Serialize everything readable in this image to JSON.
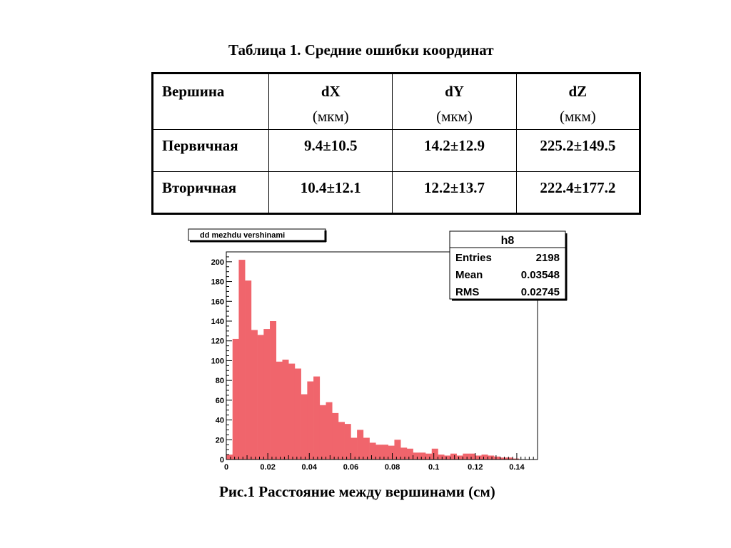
{
  "table": {
    "caption": "Таблица 1. Средние ошибки координат",
    "header": {
      "vertex": "Вершина",
      "columns": [
        {
          "name": "dX",
          "unit": "(мкм)"
        },
        {
          "name": "dY",
          "unit": "(мкм)"
        },
        {
          "name": "dZ",
          "unit": "(мкм)"
        }
      ]
    },
    "rows": [
      {
        "label": "Первичная",
        "values": [
          "9.4±10.5",
          "14.2±12.9",
          "225.2±149.5"
        ]
      },
      {
        "label": "Вторичная",
        "values": [
          "10.4±12.1",
          "12.2±13.7",
          "222.4±177.2"
        ]
      }
    ]
  },
  "stats_box": {
    "name": "h8",
    "rows": [
      {
        "label": "Entries",
        "value": "2198"
      },
      {
        "label": "Mean",
        "value": "0.03548"
      },
      {
        "label": "RMS",
        "value": "0.02745"
      }
    ]
  },
  "figure_caption": "Рис.1 Расстояние между вершинами (см)",
  "chart_data": {
    "type": "bar",
    "title": "dd mezhdu vershinami",
    "xlabel": "",
    "ylabel": "",
    "xlim": [
      0,
      0.15
    ],
    "ylim": [
      0,
      210
    ],
    "x_ticks": [
      "0",
      "0.02",
      "0.04",
      "0.06",
      "0.08",
      "0.1",
      "0.12",
      "0.14"
    ],
    "x_tick_values": [
      0,
      0.02,
      0.04,
      0.06,
      0.08,
      0.1,
      0.12,
      0.14
    ],
    "y_ticks": [
      "0",
      "20",
      "40",
      "60",
      "80",
      "100",
      "120",
      "140",
      "160",
      "180",
      "200"
    ],
    "y_tick_values": [
      0,
      20,
      40,
      60,
      80,
      100,
      120,
      140,
      160,
      180,
      200
    ],
    "bin_width": 0.003,
    "bin_start": 0,
    "values": [
      5,
      122,
      202,
      181,
      131,
      126,
      132,
      140,
      99,
      101,
      97,
      92,
      66,
      79,
      84,
      55,
      58,
      47,
      38,
      36,
      22,
      30,
      22,
      17,
      15,
      15,
      14,
      20,
      12,
      11,
      7,
      7,
      6,
      11,
      5,
      4,
      6,
      4,
      6,
      6,
      4,
      5,
      4,
      3,
      2,
      2,
      1,
      0,
      0,
      0
    ],
    "bar_color": "#f0656c",
    "grid": false,
    "legend": "none"
  }
}
